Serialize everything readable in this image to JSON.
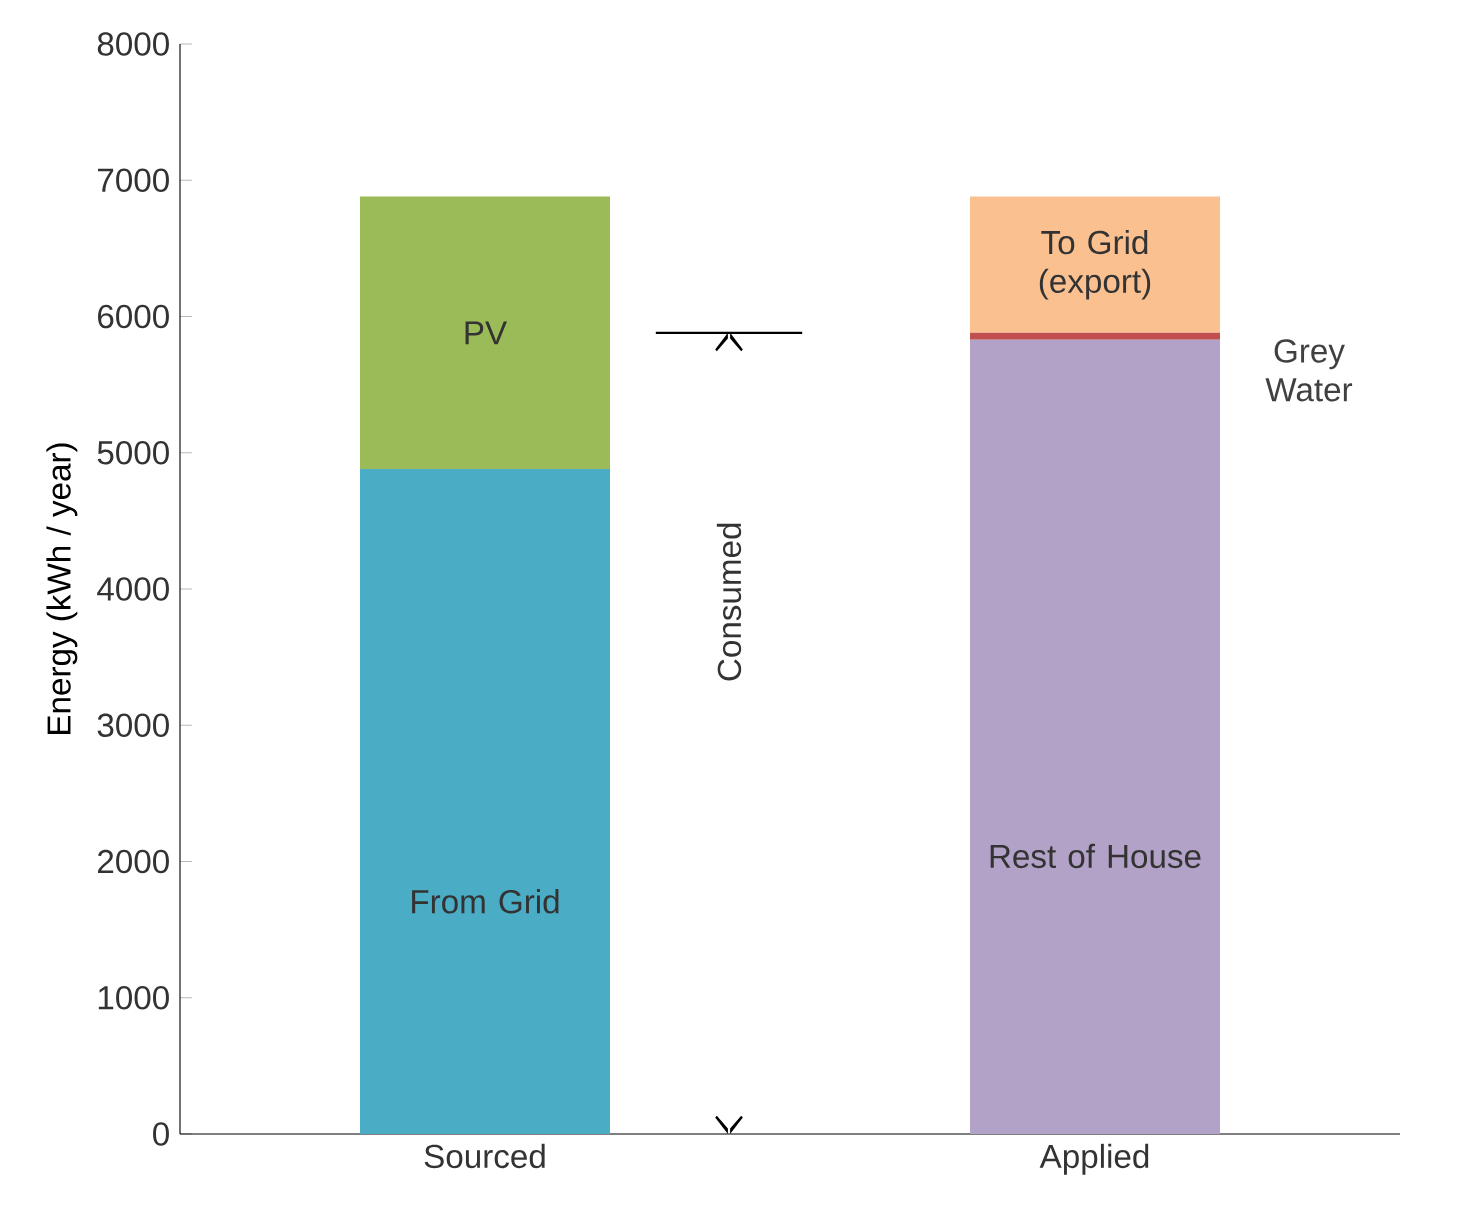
{
  "chart_data": {
    "type": "bar",
    "stacked": true,
    "ylabel": "Energy  (kWh / year)",
    "categories": [
      "Sourced",
      "Applied"
    ],
    "ylim": [
      0,
      8000
    ],
    "yticks": [
      0,
      1000,
      2000,
      3000,
      4000,
      5000,
      6000,
      7000,
      8000
    ],
    "grid": false,
    "series": [
      {
        "name": "From Grid",
        "color": "#4bacc6",
        "values": [
          4880,
          null
        ]
      },
      {
        "name": "PV",
        "color": "#9bbb59",
        "values": [
          2000,
          null
        ]
      },
      {
        "name": "Rest of House",
        "color": "#b3a2c7",
        "values": [
          null,
          5830
        ]
      },
      {
        "name": "Grey Water",
        "color": "#c0504d",
        "values": [
          null,
          50
        ]
      },
      {
        "name": "To Grid (export)",
        "color": "#fac090",
        "values": [
          null,
          1000
        ]
      }
    ],
    "annotations": [
      "Consumed"
    ]
  }
}
